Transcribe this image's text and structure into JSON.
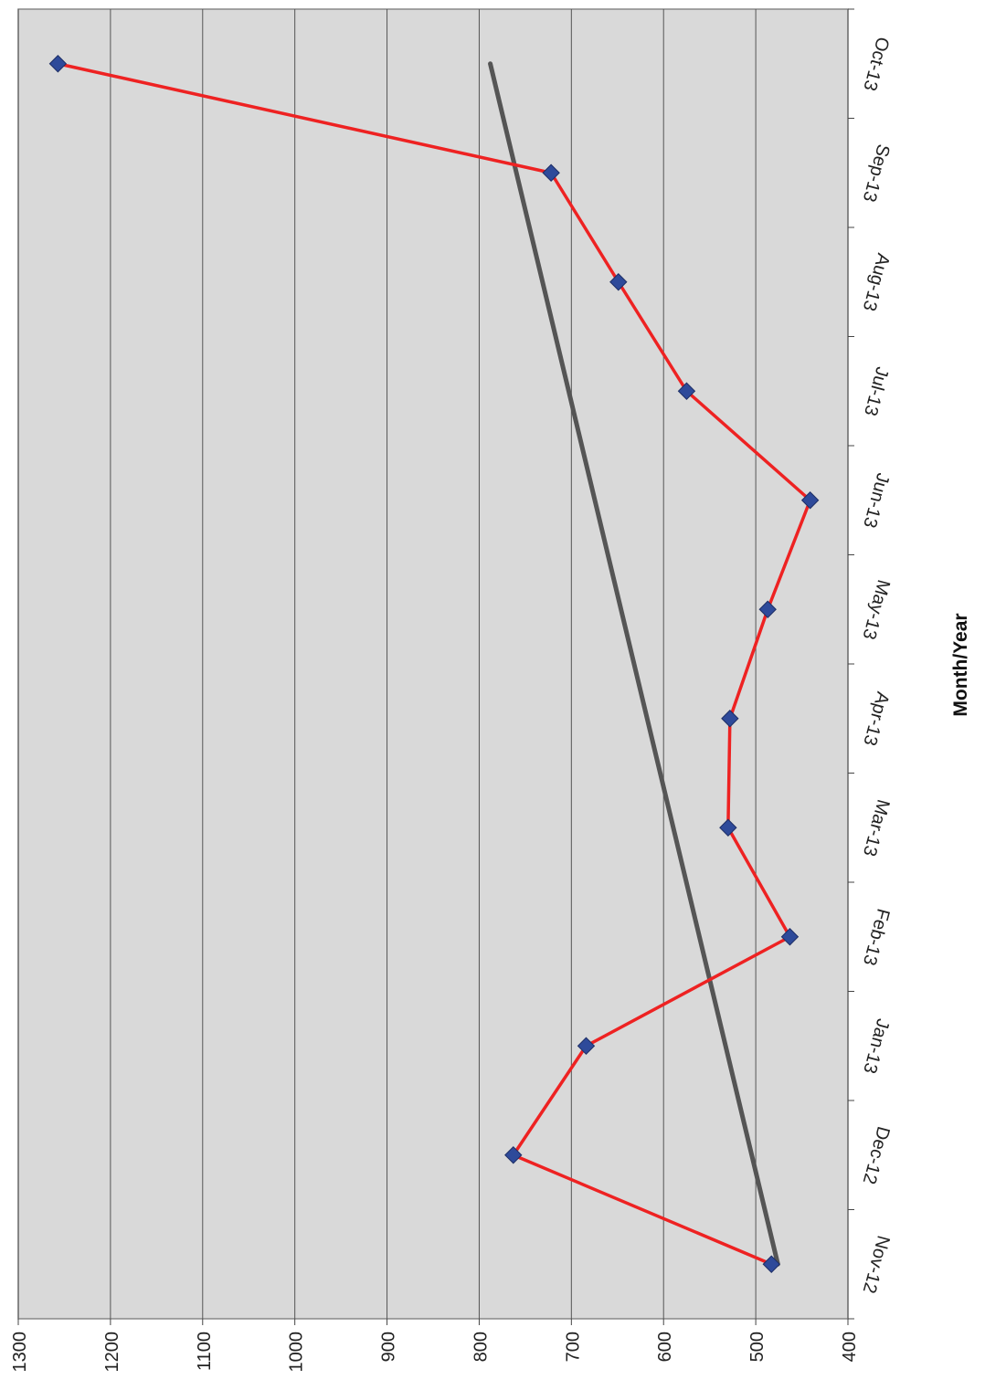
{
  "chart_data": {
    "type": "line",
    "orientation": "rotated-90-clockwise",
    "categories": [
      "Nov-12",
      "Dec-12",
      "Jan-13",
      "Feb-13",
      "Mar-13",
      "Apr-13",
      "May-13",
      "Jun-13",
      "Jul-13",
      "Aug-13",
      "Sep-13",
      "Oct-13"
    ],
    "series": [
      {
        "values": [
          483,
          763,
          684,
          463,
          530,
          528,
          487,
          441,
          575,
          649,
          722,
          1257
        ],
        "color": "#ee2222",
        "marker": "diamond",
        "marker_color": "#2e4a9a"
      },
      {
        "type": "trendline",
        "values": [
          476,
          504,
          533,
          561,
          589,
          618,
          646,
          674,
          703,
          731,
          759,
          788
        ],
        "color": "#555555"
      }
    ],
    "xlabel": "Month/Year",
    "ylabel": "",
    "ylim": [
      400,
      1300
    ],
    "yticks": [
      "400",
      "500",
      "600",
      "700",
      "800",
      "900",
      "1000",
      "1100",
      "1200",
      "1300"
    ],
    "grid": true,
    "plot_background": "#d9d9d9"
  }
}
